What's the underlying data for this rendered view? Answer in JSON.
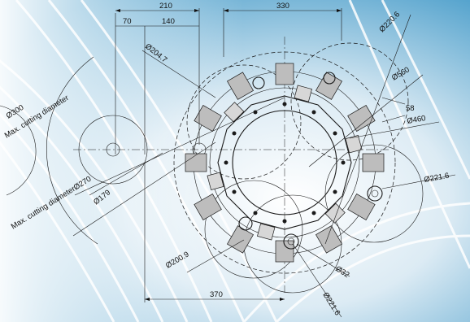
{
  "dimensions": {
    "top_210": "210",
    "top_70": "70",
    "top_140": "140",
    "top_330": "330",
    "bottom_370": "370",
    "d204_7": "Ø204.7",
    "d220_6": "Ø220.6",
    "d560": "Ø560",
    "d58": "58",
    "d460": "Ø460",
    "d221_6_right": "Ø221.6",
    "d300": "Ø300",
    "max_cut_1": "Max. cutting diameter",
    "max_cut_2": "Max. cutting diameterØ270",
    "d179": "Ø179",
    "d200_9": "Ø200.9",
    "d32": "Ø32",
    "d221_6_bottom": "Ø221.6"
  },
  "colors": {
    "background_light": "#e9f4fa",
    "background_blue": "#3f9ac8",
    "line": "#1a1a1a",
    "tool_block": "#bdbdbd"
  }
}
